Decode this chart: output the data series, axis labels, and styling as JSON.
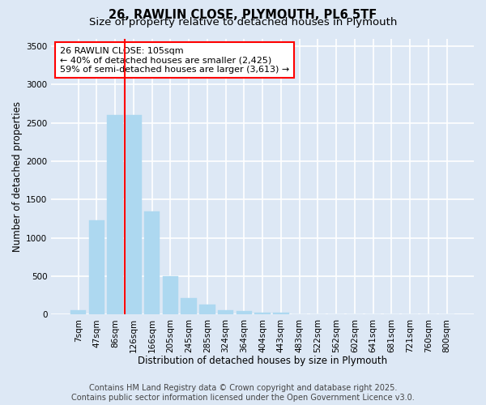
{
  "title_line1": "26, RAWLIN CLOSE, PLYMOUTH, PL6 5TF",
  "title_line2": "Size of property relative to detached houses in Plymouth",
  "xlabel": "Distribution of detached houses by size in Plymouth",
  "ylabel": "Number of detached properties",
  "footer_line1": "Contains HM Land Registry data © Crown copyright and database right 2025.",
  "footer_line2": "Contains public sector information licensed under the Open Government Licence v3.0.",
  "annotation_line1": "26 RAWLIN CLOSE: 105sqm",
  "annotation_line2": "← 40% of detached houses are smaller (2,425)",
  "annotation_line3": "59% of semi-detached houses are larger (3,613) →",
  "bar_labels": [
    "7sqm",
    "47sqm",
    "86sqm",
    "126sqm",
    "166sqm",
    "205sqm",
    "245sqm",
    "285sqm",
    "324sqm",
    "364sqm",
    "404sqm",
    "443sqm",
    "483sqm",
    "522sqm",
    "562sqm",
    "602sqm",
    "641sqm",
    "681sqm",
    "721sqm",
    "760sqm",
    "800sqm"
  ],
  "bar_values": [
    60,
    1230,
    2600,
    2600,
    1340,
    500,
    210,
    130,
    55,
    45,
    30,
    30,
    5,
    0,
    0,
    0,
    0,
    0,
    0,
    0,
    0
  ],
  "bar_color": "#add8f0",
  "bar_edge_color": "#add8f0",
  "vline_position": 2.5,
  "vline_color": "red",
  "ylim": [
    0,
    3600
  ],
  "yticks": [
    0,
    500,
    1000,
    1500,
    2000,
    2500,
    3000,
    3500
  ],
  "bg_color": "#dde8f5",
  "plot_bg_color": "#dde8f5",
  "grid_color": "white",
  "annotation_box_facecolor": "white",
  "annotation_box_edgecolor": "red",
  "title_fontsize": 10.5,
  "subtitle_fontsize": 9.5,
  "axis_label_fontsize": 8.5,
  "tick_fontsize": 7.5,
  "annotation_fontsize": 8,
  "footer_fontsize": 7
}
